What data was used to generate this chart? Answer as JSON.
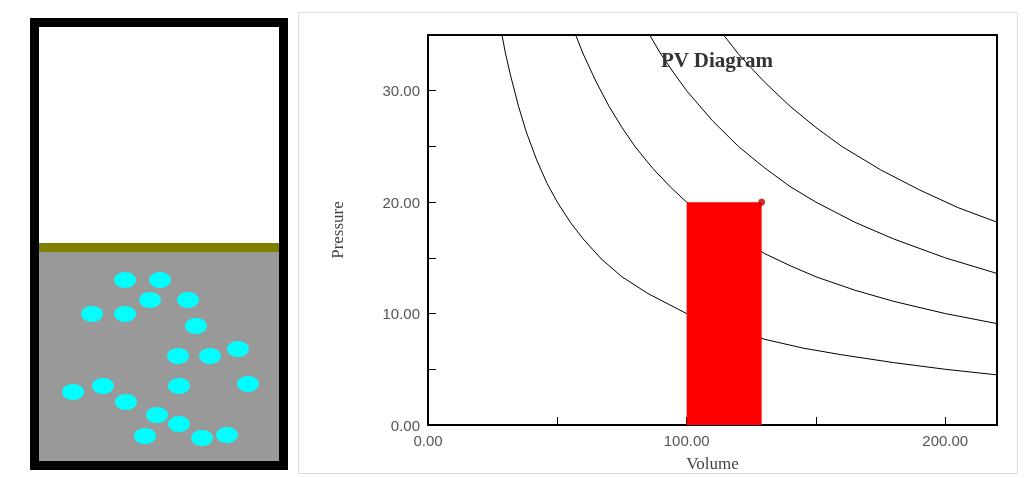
{
  "chart_data": {
    "type": "line",
    "title": "PV Diagram",
    "xlabel": "Volume",
    "ylabel": "Pressure",
    "xlim": [
      0,
      220
    ],
    "ylim": [
      0,
      35
    ],
    "xticks": [
      {
        "value": 0,
        "label": "0.00"
      },
      {
        "value": 50,
        "label": null
      },
      {
        "value": 100,
        "label": "100.00"
      },
      {
        "value": 150,
        "label": null
      },
      {
        "value": 200,
        "label": "200.00"
      }
    ],
    "yticks": [
      {
        "value": 0,
        "label": "0.00"
      },
      {
        "value": 5,
        "label": null
      },
      {
        "value": 10,
        "label": "10.00"
      },
      {
        "value": 15,
        "label": null
      },
      {
        "value": 20,
        "label": "20.00"
      },
      {
        "value": 25,
        "label": null
      },
      {
        "value": 30,
        "label": "30.00"
      }
    ],
    "grid": false,
    "marker": "none",
    "line_style": "solid",
    "series": [
      {
        "color": "#000000",
        "x": [
          28.6,
          30,
          32,
          35,
          38,
          42,
          46,
          50,
          55,
          60,
          67,
          75,
          85,
          100,
          130,
          145,
          160,
          180,
          200,
          220
        ],
        "values": [
          35,
          33.3,
          31.3,
          28.6,
          26.3,
          23.8,
          21.7,
          20,
          18.2,
          16.7,
          14.9,
          13.3,
          11.8,
          10,
          7.7,
          6.9,
          6.3,
          5.6,
          5,
          4.5
        ]
      },
      {
        "color": "#000000",
        "x": [
          57.1,
          60,
          65,
          70,
          75,
          80,
          87,
          94,
          100,
          130,
          140,
          150,
          165,
          180,
          200,
          220
        ],
        "values": [
          35,
          33.3,
          30.8,
          28.6,
          26.7,
          25,
          23,
          21.3,
          20,
          15.4,
          14.3,
          13.3,
          12.1,
          11.1,
          10,
          9.1
        ]
      },
      {
        "color": "#000000",
        "x": [
          85.7,
          90,
          95,
          100,
          110,
          120,
          130,
          140,
          150,
          165,
          180,
          200,
          220
        ],
        "values": [
          35,
          33.3,
          31.6,
          30,
          27.3,
          25,
          23.1,
          21.4,
          20,
          18.2,
          16.7,
          15,
          13.6
        ]
      },
      {
        "color": "#000000",
        "x": [
          114.3,
          120,
          130,
          140,
          150,
          160,
          175,
          190,
          205,
          220
        ],
        "values": [
          35,
          33.3,
          30.8,
          28.6,
          26.7,
          25,
          22.9,
          21.1,
          19.5,
          18.2
        ]
      },
      {
        "type": "area",
        "color": "#ff0000",
        "x": [
          100,
          129
        ],
        "values": [
          20,
          20
        ]
      },
      {
        "type": "scatter",
        "color": "#c00000",
        "x": [
          129
        ],
        "values": [
          20
        ]
      }
    ]
  }
}
